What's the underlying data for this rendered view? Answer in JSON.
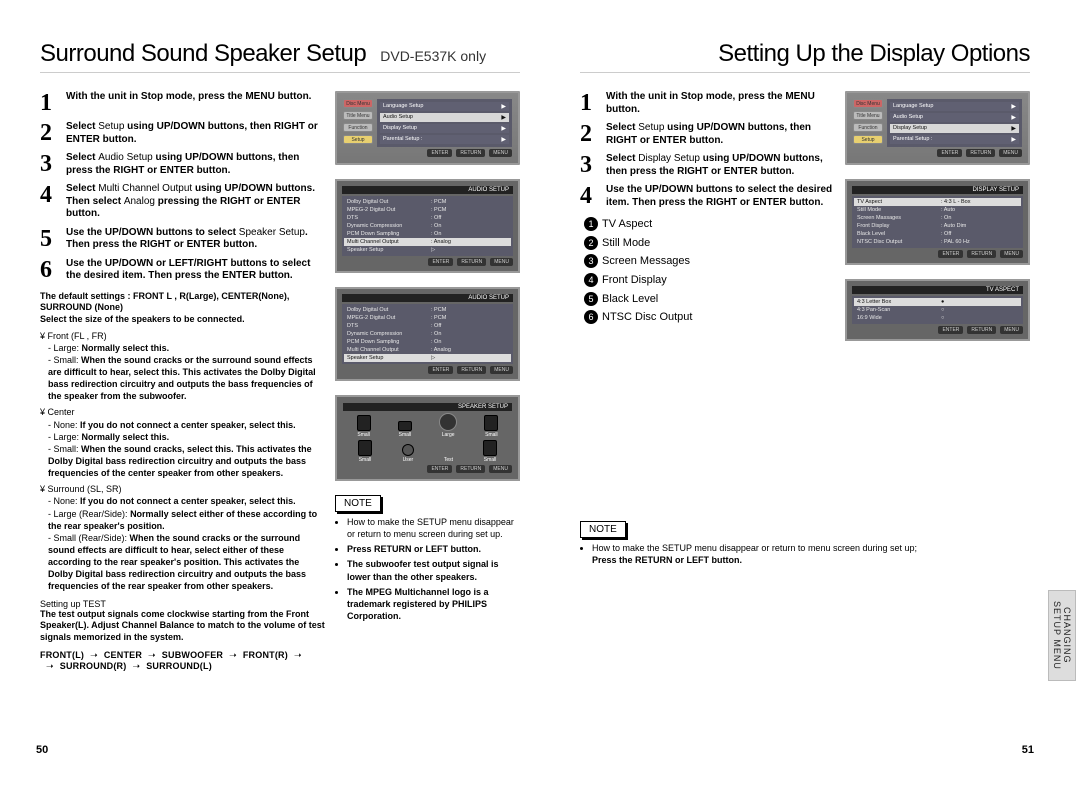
{
  "leftPage": {
    "title": "Surround Sound Speaker Setup",
    "subtitle": "DVD-E537K only",
    "steps": [
      {
        "n": "1",
        "html": "With the unit in Stop mode, press the MENU button."
      },
      {
        "n": "2",
        "html": "Select <span class='light'>Setup</span> using UP/DOWN buttons, then RIGHT or ENTER button."
      },
      {
        "n": "3",
        "html": "Select <span class='light'>Audio Setup</span> using UP/DOWN buttons, then press the RIGHT or ENTER button."
      },
      {
        "n": "4",
        "html": "Select <span class='light'>Multi Channel Output</span> using UP/DOWN buttons. Then select <span class='light'>Analog</span> pressing the RIGHT or ENTER button."
      },
      {
        "n": "5",
        "html": "Use the UP/DOWN buttons to select <span class='light'>Speaker Setup</span>. Then press the RIGHT or ENTER button."
      },
      {
        "n": "6",
        "html": "Use the UP/DOWN or LEFT/RIGHT buttons to select the desired item. Then press the ENTER button."
      }
    ],
    "defaults": "The default settings : FRONT L , R(Large), CENTER(None), SURROUND (None)\nSelect the size of the speakers to be connected.",
    "groups": [
      {
        "label": "¥ Front (FL , FR)",
        "items": [
          {
            "pre": "- Large:",
            "txt": "Normally select this."
          },
          {
            "pre": "- Small:",
            "txt": "When the sound cracks or the surround sound effects are difficult to hear, select this. This activates the Dolby Digital bass redirection circuitry and outputs the bass frequencies of the speaker from the subwoofer."
          }
        ]
      },
      {
        "label": "¥ Center",
        "items": [
          {
            "pre": "- None:",
            "txt": "If you do not connect a center speaker, select this."
          },
          {
            "pre": "- Large:",
            "txt": "Normally select this."
          },
          {
            "pre": "- Small:",
            "txt": "When the sound cracks, select this. This activates the Dolby Digital bass redirection circuitry and outputs the bass frequencies of the center speaker from other speakers."
          }
        ]
      },
      {
        "label": "¥ Surround (SL, SR)",
        "items": [
          {
            "pre": "- None:",
            "txt": "If you do not connect a center speaker, select this."
          },
          {
            "pre": "- Large (Rear/Side):",
            "txt": "Normally select either of these according to the rear speaker's position."
          },
          {
            "pre": "- Small (Rear/Side):",
            "txt": "When the sound cracks or the surround sound effects are difficult to hear, select either of these according to the rear speaker's position. This activates the Dolby Digital bass redirection circuitry and outputs the bass frequencies of the rear speaker from other speakers."
          }
        ]
      }
    ],
    "testTitle": "Setting up TEST",
    "testBody": "The test output signals come clockwise starting from the Front Speaker(L). Adjust Channel Balance to match to the volume of test signals memorized in the system.",
    "flow": [
      "FRONT(L)",
      "CENTER",
      "SUBWOOFER",
      "FRONT(R)",
      "SURROUND(R)",
      "SURROUND(L)"
    ],
    "note": {
      "label": "NOTE",
      "items": [
        "How to make the SETUP menu disappear or return to menu screen during set up.",
        "<b>Press RETURN or LEFT button.</b>",
        "<b>The subwoofer test output signal is lower than the other speakers.</b>",
        "<b>The MPEG Multichannel logo is a trademark registered by PHILIPS Corporation.</b>"
      ]
    },
    "shots": {
      "menu1": {
        "sideLabels": [
          "Disc Menu",
          "Title Menu",
          "Function",
          "Setup"
        ],
        "rows": [
          [
            "Language Setup",
            "▶"
          ],
          [
            "Audio Setup",
            "▶"
          ],
          [
            "Display Setup",
            "▶"
          ],
          [
            "Parental Setup :",
            "▶"
          ]
        ],
        "hl": 1
      },
      "audio1": {
        "title": "AUDIO SETUP",
        "rows": [
          [
            "Dolby Digital Out",
            ": PCM"
          ],
          [
            "MPEG-2 Digital Out",
            ": PCM"
          ],
          [
            "DTS",
            ": Off"
          ],
          [
            "Dynamic Compression",
            ": On"
          ],
          [
            "PCM Down Sampling",
            ": On"
          ],
          [
            "Multi Channel Output",
            ": Analog"
          ],
          [
            "Speaker Setup",
            "▷"
          ]
        ],
        "hl": 5
      },
      "audio2": {
        "title": "AUDIO SETUP",
        "rows": [
          [
            "Dolby Digital Out",
            ": PCM"
          ],
          [
            "MPEG-2 Digital Out",
            ": PCM"
          ],
          [
            "DTS",
            ": Off"
          ],
          [
            "Dynamic Compression",
            ": On"
          ],
          [
            "PCM Down Sampling",
            ": On"
          ],
          [
            "Multi Channel Output",
            ": Analog"
          ],
          [
            "Speaker Setup",
            "▷"
          ]
        ],
        "hl": 6
      },
      "speaker": {
        "title": "SPEAKER SETUP"
      }
    },
    "pageNum": "50"
  },
  "rightPage": {
    "title": "Setting Up the Display Options",
    "steps": [
      {
        "n": "1",
        "html": "With the unit in Stop mode, press the MENU button."
      },
      {
        "n": "2",
        "html": "Select <span class='light'>Setup</span> using UP/DOWN buttons, then RIGHT or ENTER button."
      },
      {
        "n": "3",
        "html": "Select <span class='light'>Display Setup</span> using UP/DOWN buttons, then press the RIGHT or ENTER button."
      },
      {
        "n": "4",
        "html": "Use the UP/DOWN buttons to select the desired item. Then press the RIGHT or ENTER button."
      }
    ],
    "options": [
      "TV Aspect",
      "Still Mode",
      "Screen Messages",
      "Front Display",
      "Black Level",
      "NTSC Disc Output"
    ],
    "note": {
      "label": "NOTE",
      "items": [
        "How to make the SETUP menu disappear or return to menu screen during set up;<br><b>Press the RETURN or LEFT button.</b>"
      ]
    },
    "shots": {
      "menu": {
        "sideLabels": [
          "Disc Menu",
          "Title Menu",
          "Function",
          "Setup"
        ],
        "rows": [
          [
            "Language Setup",
            "▶"
          ],
          [
            "Audio Setup",
            "▶"
          ],
          [
            "Display Setup",
            "▶"
          ],
          [
            "Parental Setup :",
            "▶"
          ]
        ],
        "hl": 2
      },
      "display": {
        "title": "DISPLAY SETUP",
        "rows": [
          [
            "TV Aspect",
            ": 4:3  L - Box"
          ],
          [
            "Still Mode",
            ": Auto"
          ],
          [
            "Screen Massages",
            ": On"
          ],
          [
            "Front Display",
            ": Auto Dim"
          ],
          [
            "Black Level",
            ": Off"
          ],
          [
            "NTSC Disc Output",
            ": PAL 60 Hz"
          ]
        ],
        "hl": 0
      },
      "tvaspect": {
        "title": "TV ASPECT",
        "rows": [
          [
            "4:3 Letter Box",
            "●"
          ],
          [
            "4:3 Pan-Scan",
            "○"
          ],
          [
            "16:9 Wide",
            "○"
          ]
        ],
        "hl": 0
      }
    },
    "sideTab": "CHANGING\nSETUP MENU",
    "pageNum": "51"
  }
}
